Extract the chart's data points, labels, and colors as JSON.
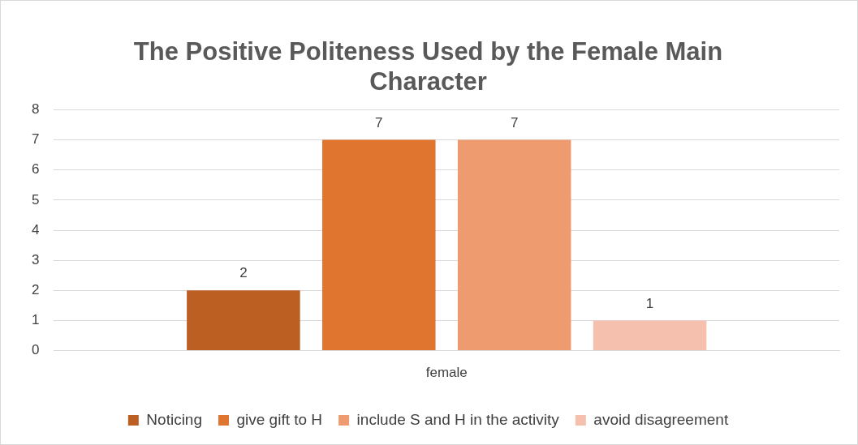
{
  "chart_data": {
    "type": "bar",
    "title": "The Positive Politeness Used by the Female Main Character",
    "categories": [
      "female"
    ],
    "series": [
      {
        "name": "Noticing",
        "color": "#bc5f23",
        "values": [
          2
        ]
      },
      {
        "name": "give gift to H",
        "color": "#e0752f",
        "values": [
          7
        ]
      },
      {
        "name": "include S and H in the activity",
        "color": "#ef9b70",
        "values": [
          7
        ]
      },
      {
        "name": "avoid disagreement",
        "color": "#f5c1ae",
        "values": [
          1
        ]
      }
    ],
    "ylim": [
      0,
      8
    ],
    "yticks": [
      0,
      1,
      2,
      3,
      4,
      5,
      6,
      7,
      8
    ],
    "grid": "y",
    "legend": "bottom",
    "data_labels": true
  }
}
